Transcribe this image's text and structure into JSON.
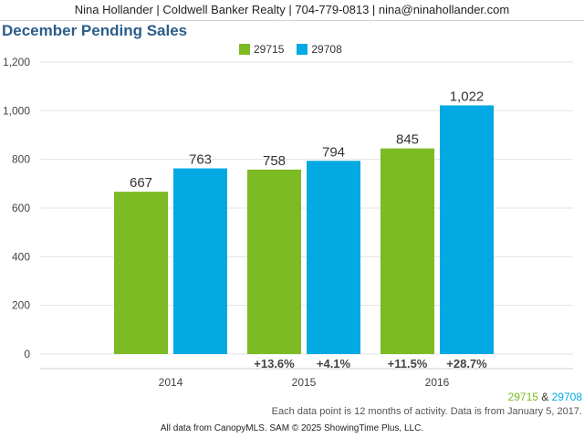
{
  "header": {
    "contact": "Nina Hollander | Coldwell Banker Realty | 704-779-0813 | nina@ninahollander.com"
  },
  "chart_title": "December Pending Sales",
  "colors": {
    "series_29715": "#7cbb23",
    "series_29708": "#03a9e3",
    "title": "#2b5d8a"
  },
  "footer": {
    "zip1": "29715",
    "amp": " & ",
    "zip2": "29708",
    "note": "Each data point is 12 months of activity. Data is from January 5, 2017.",
    "source": "All data from CanopyMLS. SAM © 2025 ShowingTime Plus, LLC."
  },
  "chart_data": {
    "type": "bar",
    "title": "December Pending Sales",
    "categories": [
      "2014",
      "2015",
      "2016"
    ],
    "series": [
      {
        "name": "29715",
        "values": [
          667,
          758,
          845
        ],
        "value_labels": [
          "667",
          "758",
          "845"
        ],
        "changes": [
          "",
          "+13.6%",
          "+11.5%"
        ]
      },
      {
        "name": "29708",
        "values": [
          763,
          794,
          1022
        ],
        "value_labels": [
          "763",
          "794",
          "1,022"
        ],
        "changes": [
          "",
          "+4.1%",
          "+28.7%"
        ]
      }
    ],
    "yticks": [
      "0",
      "200",
      "400",
      "600",
      "800",
      "1,000",
      "1,200"
    ],
    "ylim": [
      0,
      1200
    ],
    "grid": true,
    "legend": "top-center"
  }
}
